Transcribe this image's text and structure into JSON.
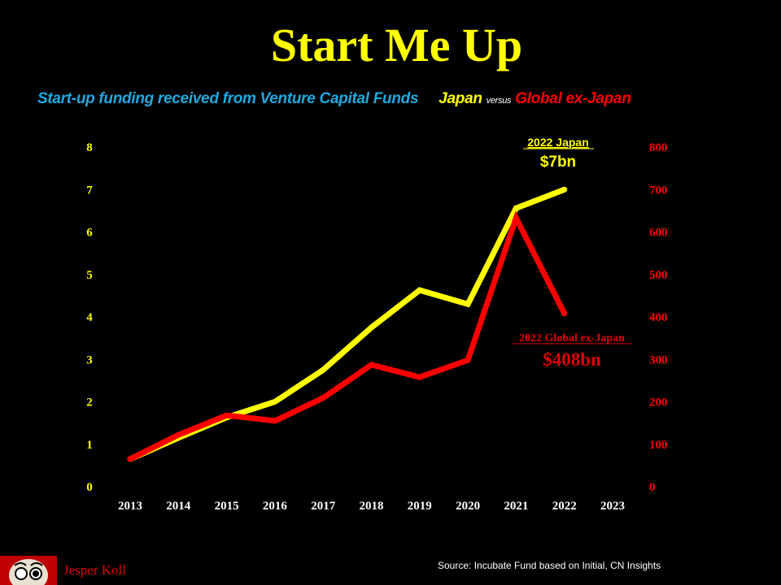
{
  "title": "Start Me Up",
  "subtitle": {
    "main": "Start-up funding received from Venture Capital Funds",
    "japan": "Japan",
    "versus": "versus",
    "global": "Global ex-Japan"
  },
  "colors": {
    "japan": "#ffff00",
    "global": "#ff0000",
    "subtitle": "#1fa9e0"
  },
  "chart_data": {
    "type": "line",
    "title": "Start Me Up",
    "x": [
      2013,
      2014,
      2015,
      2016,
      2017,
      2018,
      2019,
      2020,
      2021,
      2022
    ],
    "x_ticks": [
      "2013",
      "2014",
      "2015",
      "2016",
      "2017",
      "2018",
      "2019",
      "2020",
      "2021",
      "2022",
      "2023"
    ],
    "y_left": {
      "range": [
        0,
        8
      ],
      "ticks": [
        "0",
        "1",
        "2",
        "3",
        "4",
        "5",
        "6",
        "7",
        "8"
      ],
      "unit": "$bn"
    },
    "y_right": {
      "range": [
        0,
        800
      ],
      "ticks": [
        "0",
        "100",
        "200",
        "300",
        "400",
        "500",
        "600",
        "700",
        "800"
      ],
      "unit": "$bn"
    },
    "grid": false,
    "series": [
      {
        "name": "Japan",
        "axis": "left",
        "color": "#ffff00",
        "values": [
          0.65,
          1.15,
          1.63,
          2.0,
          2.75,
          3.75,
          4.63,
          4.3,
          6.56,
          7.0
        ]
      },
      {
        "name": "Global ex-Japan",
        "axis": "right",
        "color": "#ff0000",
        "values": [
          65,
          122,
          168,
          155,
          209,
          287,
          258,
          298,
          633,
          408
        ]
      }
    ],
    "annotations": {
      "japan_label": "2022 Japan",
      "japan_value": "$7bn",
      "global_label": "2022 Global  ex-Japan",
      "global_value": "$408bn"
    }
  },
  "footer": {
    "author": "Jesper Koll",
    "source": "Source: Incubate Fund based on Initial, CN Insights"
  }
}
